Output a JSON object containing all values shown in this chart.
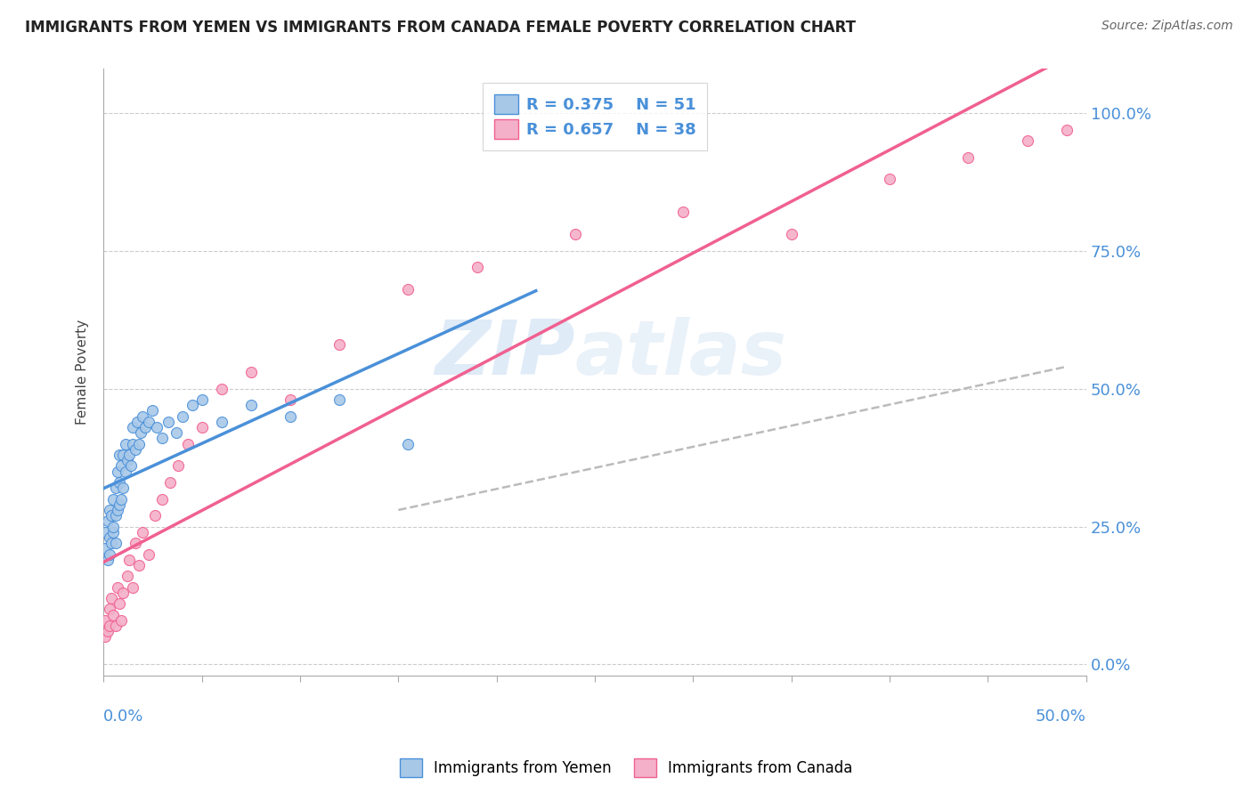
{
  "title": "IMMIGRANTS FROM YEMEN VS IMMIGRANTS FROM CANADA FEMALE POVERTY CORRELATION CHART",
  "source": "Source: ZipAtlas.com",
  "ylabel": "Female Poverty",
  "xlim": [
    0.0,
    0.5
  ],
  "ylim": [
    -0.02,
    1.08
  ],
  "legend_r1": "R = 0.375",
  "legend_n1": "N = 51",
  "legend_r2": "R = 0.657",
  "legend_n2": "N = 38",
  "watermark": "ZIPatlas",
  "color_yemen": "#a8c8e8",
  "color_canada": "#f4b0c8",
  "color_yemen_line": "#4a90d9",
  "color_canada_line": "#f06090",
  "color_dashed": "#bbbbbb",
  "yemen_x": [
    0.001,
    0.001,
    0.002,
    0.002,
    0.003,
    0.003,
    0.003,
    0.004,
    0.004,
    0.005,
    0.005,
    0.005,
    0.006,
    0.006,
    0.006,
    0.007,
    0.007,
    0.008,
    0.008,
    0.008,
    0.009,
    0.009,
    0.01,
    0.01,
    0.011,
    0.011,
    0.012,
    0.013,
    0.014,
    0.015,
    0.015,
    0.016,
    0.017,
    0.018,
    0.019,
    0.02,
    0.021,
    0.023,
    0.025,
    0.027,
    0.03,
    0.033,
    0.037,
    0.04,
    0.045,
    0.05,
    0.06,
    0.075,
    0.095,
    0.12,
    0.155
  ],
  "yemen_y": [
    0.21,
    0.24,
    0.19,
    0.26,
    0.2,
    0.23,
    0.28,
    0.22,
    0.27,
    0.24,
    0.3,
    0.25,
    0.32,
    0.27,
    0.22,
    0.35,
    0.28,
    0.33,
    0.29,
    0.38,
    0.3,
    0.36,
    0.32,
    0.38,
    0.35,
    0.4,
    0.37,
    0.38,
    0.36,
    0.4,
    0.43,
    0.39,
    0.44,
    0.4,
    0.42,
    0.45,
    0.43,
    0.44,
    0.46,
    0.43,
    0.41,
    0.44,
    0.42,
    0.45,
    0.47,
    0.48,
    0.44,
    0.47,
    0.45,
    0.48,
    0.4
  ],
  "canada_x": [
    0.001,
    0.001,
    0.002,
    0.003,
    0.003,
    0.004,
    0.005,
    0.006,
    0.007,
    0.008,
    0.009,
    0.01,
    0.012,
    0.013,
    0.015,
    0.016,
    0.018,
    0.02,
    0.023,
    0.026,
    0.03,
    0.034,
    0.038,
    0.043,
    0.05,
    0.06,
    0.075,
    0.095,
    0.12,
    0.155,
    0.19,
    0.24,
    0.295,
    0.35,
    0.4,
    0.44,
    0.47,
    0.49
  ],
  "canada_y": [
    0.05,
    0.08,
    0.06,
    0.1,
    0.07,
    0.12,
    0.09,
    0.07,
    0.14,
    0.11,
    0.08,
    0.13,
    0.16,
    0.19,
    0.14,
    0.22,
    0.18,
    0.24,
    0.2,
    0.27,
    0.3,
    0.33,
    0.36,
    0.4,
    0.43,
    0.5,
    0.53,
    0.48,
    0.58,
    0.68,
    0.72,
    0.78,
    0.82,
    0.78,
    0.88,
    0.92,
    0.95,
    0.97
  ],
  "ytick_vals": [
    0.0,
    0.25,
    0.5,
    0.75,
    1.0
  ],
  "ytick_labels": [
    "0.0%",
    "25.0%",
    "50.0%",
    "75.0%",
    "100.0%"
  ]
}
